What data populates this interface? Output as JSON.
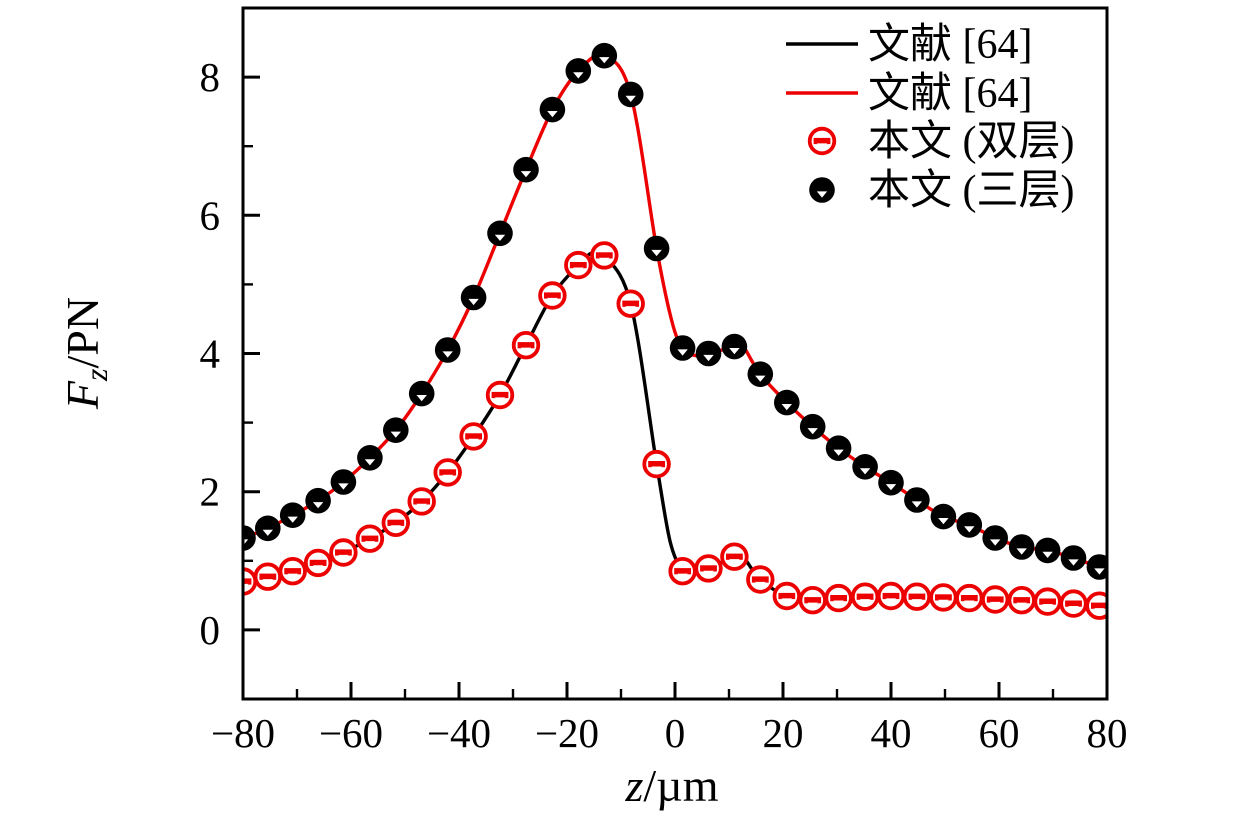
{
  "chart_data": {
    "type": "line",
    "title": "",
    "xlabel": {
      "main": "z",
      "rest": "/µm"
    },
    "ylabel": {
      "main": "F",
      "sub": "z",
      "rest": "/PN"
    },
    "x_range": [
      -80,
      80
    ],
    "y_range": [
      -1,
      9
    ],
    "x_major_ticks": [
      -80,
      -60,
      -40,
      -20,
      0,
      20,
      40,
      60,
      80
    ],
    "x_major_tick_labels": [
      "−80",
      "−60",
      "−40",
      "−20",
      "0",
      "20",
      "40",
      "60",
      "80"
    ],
    "x_minor_ticks": [
      -70,
      -50,
      -30,
      -10,
      10,
      30,
      50,
      70
    ],
    "y_major_ticks": [
      0,
      2,
      4,
      6,
      8
    ],
    "y_major_tick_labels": [
      "0",
      "2",
      "4",
      "6",
      "8"
    ],
    "y_minor_ticks": [
      1,
      3,
      5,
      7
    ],
    "grid": false,
    "legend_position": "top-right-inside",
    "colors": {
      "red": "#ec0000",
      "black": "#000000",
      "marker_face": "#ffffff"
    },
    "series": [
      {
        "name": "文献 [64]",
        "line_color": "#000000",
        "marker": {
          "name": "本文 (双层)",
          "shape": "circle-horizontal-bar",
          "color": "#ec0000",
          "face": "#ffffff"
        },
        "points": [
          [
            -80,
            0.7
          ],
          [
            -75.4,
            0.77
          ],
          [
            -70.8,
            0.85
          ],
          [
            -66.1,
            0.97
          ],
          [
            -61.4,
            1.12
          ],
          [
            -56.5,
            1.32
          ],
          [
            -51.7,
            1.55
          ],
          [
            -46.9,
            1.86
          ],
          [
            -42.1,
            2.28
          ],
          [
            -37.3,
            2.8
          ],
          [
            -32.4,
            3.4
          ],
          [
            -27.6,
            4.12
          ],
          [
            -22.7,
            4.84
          ],
          [
            -17.9,
            5.28
          ],
          [
            -13.1,
            5.42
          ],
          [
            -8.2,
            4.72
          ],
          [
            -3.4,
            2.4
          ],
          [
            1.4,
            0.85
          ],
          [
            6.2,
            0.89
          ],
          [
            11,
            1.06
          ],
          [
            15.8,
            0.73
          ],
          [
            20.7,
            0.49
          ],
          [
            25.5,
            0.43
          ],
          [
            30.3,
            0.46
          ],
          [
            35.2,
            0.48
          ],
          [
            40,
            0.49
          ],
          [
            44.8,
            0.48
          ],
          [
            49.7,
            0.47
          ],
          [
            54.5,
            0.46
          ],
          [
            59.3,
            0.44
          ],
          [
            64.2,
            0.43
          ],
          [
            69,
            0.41
          ],
          [
            73.8,
            0.38
          ],
          [
            78.6,
            0.35
          ]
        ],
        "line_extra_points": [
          [
            -15.3,
            5.46
          ],
          [
            -0.9,
            1.28
          ],
          [
            2.9,
            0.8
          ],
          [
            12.4,
            1.08
          ],
          [
            80,
            0.34
          ]
        ]
      },
      {
        "name": "文献 [64]",
        "line_color": "#ec0000",
        "marker": {
          "name": "本文 (三层)",
          "shape": "filled-circle-notch",
          "color": "#000000",
          "face": "#ffffff"
        },
        "points": [
          [
            -80,
            1.33
          ],
          [
            -75.4,
            1.47
          ],
          [
            -70.8,
            1.66
          ],
          [
            -66.1,
            1.87
          ],
          [
            -61.4,
            2.14
          ],
          [
            -56.5,
            2.49
          ],
          [
            -51.7,
            2.89
          ],
          [
            -46.9,
            3.42
          ],
          [
            -42.1,
            4.05
          ],
          [
            -37.3,
            4.81
          ],
          [
            -32.4,
            5.74
          ],
          [
            -27.6,
            6.66
          ],
          [
            -22.7,
            7.53
          ],
          [
            -17.9,
            8.09
          ],
          [
            -13.1,
            8.31
          ],
          [
            -8.2,
            7.75
          ],
          [
            -3.4,
            5.52
          ],
          [
            1.4,
            4.08
          ],
          [
            6.2,
            4.0
          ],
          [
            11,
            4.1
          ],
          [
            15.8,
            3.7
          ],
          [
            20.7,
            3.29
          ],
          [
            25.5,
            2.94
          ],
          [
            30.3,
            2.63
          ],
          [
            35.2,
            2.36
          ],
          [
            40,
            2.13
          ],
          [
            44.8,
            1.88
          ],
          [
            49.7,
            1.64
          ],
          [
            54.5,
            1.52
          ],
          [
            59.3,
            1.33
          ],
          [
            64.2,
            1.2
          ],
          [
            69,
            1.15
          ],
          [
            73.8,
            1.04
          ],
          [
            78.6,
            0.91
          ]
        ],
        "line_extra_points": [
          [
            -0.6,
            4.47
          ],
          [
            3.8,
            3.97
          ],
          [
            12.4,
            4.13
          ],
          [
            80,
            0.89
          ]
        ]
      }
    ],
    "legend": {
      "items": [
        {
          "swatch": "line-black",
          "label": "文献 [64]"
        },
        {
          "swatch": "line-red",
          "label": "文献 [64]"
        },
        {
          "swatch": "marker-red",
          "label": "本文 (双层)"
        },
        {
          "swatch": "marker-black",
          "label": "本文 (三层)"
        }
      ]
    }
  }
}
